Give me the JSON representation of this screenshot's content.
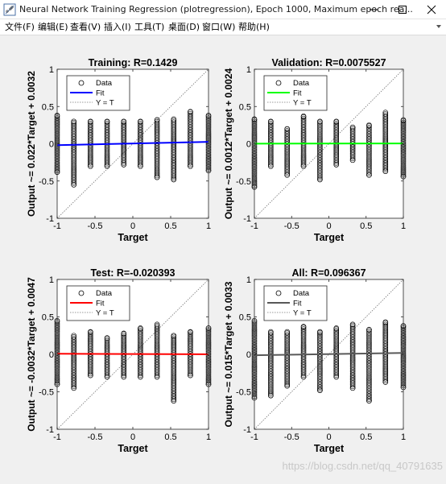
{
  "window": {
    "title": "Neural Network Training Regression (plotregression), Epoch 1000, Maximum epoch rea..."
  },
  "menu": {
    "items": [
      "文件(F)",
      "编辑(E)",
      "查看(V)",
      "插入(I)",
      "工具(T)",
      "桌面(D)",
      "窗口(W)",
      "帮助(H)"
    ]
  },
  "watermark": "https://blog.csdn.net/qq_40791635",
  "colors": {
    "training_fit": "#0000ff",
    "validation_fit": "#00ff00",
    "test_fit": "#ff0000",
    "all_fit": "#595959"
  },
  "chart_data": [
    {
      "type": "scatter",
      "title": "Training: R=0.1429",
      "xlabel": "Target",
      "ylabel": "Output ~= 0.022*Target + 0.0032",
      "xlim": [
        -1,
        1
      ],
      "ylim": [
        -1,
        1
      ],
      "xticks": [
        -1,
        -0.5,
        0,
        0.5,
        1
      ],
      "yticks": [
        -1,
        -0.5,
        0,
        0.5,
        1
      ],
      "fit": {
        "slope": 0.022,
        "intercept": 0.0032,
        "color": "#0000ff"
      },
      "legend": [
        "Data",
        "Fit",
        "Y = T"
      ],
      "legend_position": "top-left",
      "columns": [
        {
          "x": -1,
          "ymin": -0.38,
          "ymax": 0.38
        },
        {
          "x": -0.78,
          "ymin": -0.55,
          "ymax": 0.3
        },
        {
          "x": -0.56,
          "ymin": -0.3,
          "ymax": 0.3
        },
        {
          "x": -0.34,
          "ymin": -0.3,
          "ymax": 0.3
        },
        {
          "x": -0.12,
          "ymin": -0.28,
          "ymax": 0.3
        },
        {
          "x": 0.1,
          "ymin": -0.3,
          "ymax": 0.3
        },
        {
          "x": 0.32,
          "ymin": -0.45,
          "ymax": 0.32
        },
        {
          "x": 0.54,
          "ymin": -0.48,
          "ymax": 0.33
        },
        {
          "x": 0.76,
          "ymin": -0.3,
          "ymax": 0.43
        },
        {
          "x": 1,
          "ymin": -0.36,
          "ymax": 0.38
        }
      ]
    },
    {
      "type": "scatter",
      "title": "Validation: R=0.0075527",
      "xlabel": "Target",
      "ylabel": "Output ~= 0.0012*Target + 0.0024",
      "xlim": [
        -1,
        1
      ],
      "ylim": [
        -1,
        1
      ],
      "xticks": [
        -1,
        -0.5,
        0,
        0.5,
        1
      ],
      "yticks": [
        -1,
        -0.5,
        0,
        0.5,
        1
      ],
      "fit": {
        "slope": 0.0012,
        "intercept": 0.0024,
        "color": "#00ff00"
      },
      "legend": [
        "Data",
        "Fit",
        "Y = T"
      ],
      "legend_position": "top-left",
      "columns": [
        {
          "x": -1,
          "ymin": -0.58,
          "ymax": 0.33
        },
        {
          "x": -0.78,
          "ymin": -0.3,
          "ymax": 0.3
        },
        {
          "x": -0.56,
          "ymin": -0.42,
          "ymax": 0.2
        },
        {
          "x": -0.34,
          "ymin": -0.3,
          "ymax": 0.37
        },
        {
          "x": -0.12,
          "ymin": -0.48,
          "ymax": 0.3
        },
        {
          "x": 0.1,
          "ymin": -0.28,
          "ymax": 0.3
        },
        {
          "x": 0.32,
          "ymin": -0.22,
          "ymax": 0.22
        },
        {
          "x": 0.54,
          "ymin": -0.42,
          "ymax": 0.25
        },
        {
          "x": 0.76,
          "ymin": -0.37,
          "ymax": 0.42
        },
        {
          "x": 1,
          "ymin": -0.44,
          "ymax": 0.32
        }
      ]
    },
    {
      "type": "scatter",
      "title": "Test: R=-0.020393",
      "xlabel": "Target",
      "ylabel": "Output ~= -0.0032*Target + 0.0047",
      "xlim": [
        -1,
        1
      ],
      "ylim": [
        -1,
        1
      ],
      "xticks": [
        -1,
        -0.5,
        0,
        0.5,
        1
      ],
      "yticks": [
        -1,
        -0.5,
        0,
        0.5,
        1
      ],
      "fit": {
        "slope": -0.0032,
        "intercept": 0.0047,
        "color": "#ff0000"
      },
      "legend": [
        "Data",
        "Fit",
        "Y = T"
      ],
      "legend_position": "top-left",
      "columns": [
        {
          "x": -1,
          "ymin": -0.4,
          "ymax": 0.45
        },
        {
          "x": -0.78,
          "ymin": -0.45,
          "ymax": 0.25
        },
        {
          "x": -0.56,
          "ymin": -0.28,
          "ymax": 0.3
        },
        {
          "x": -0.34,
          "ymin": -0.3,
          "ymax": 0.22
        },
        {
          "x": -0.12,
          "ymin": -0.3,
          "ymax": 0.28
        },
        {
          "x": 0.1,
          "ymin": -0.3,
          "ymax": 0.35
        },
        {
          "x": 0.32,
          "ymin": -0.3,
          "ymax": 0.4
        },
        {
          "x": 0.54,
          "ymin": -0.62,
          "ymax": 0.25
        },
        {
          "x": 0.76,
          "ymin": -0.28,
          "ymax": 0.3
        },
        {
          "x": 1,
          "ymin": -0.4,
          "ymax": 0.35
        }
      ]
    },
    {
      "type": "scatter",
      "title": "All: R=0.096367",
      "xlabel": "Target",
      "ylabel": "Output ~= 0.015*Target + 0.0033",
      "xlim": [
        -1,
        1
      ],
      "ylim": [
        -1,
        1
      ],
      "xticks": [
        -1,
        -0.5,
        0,
        0.5,
        1
      ],
      "yticks": [
        -1,
        -0.5,
        0,
        0.5,
        1
      ],
      "fit": {
        "slope": 0.015,
        "intercept": 0.0033,
        "color": "#595959"
      },
      "legend": [
        "Data",
        "Fit",
        "Y = T"
      ],
      "legend_position": "top-left",
      "columns": [
        {
          "x": -1,
          "ymin": -0.58,
          "ymax": 0.45
        },
        {
          "x": -0.78,
          "ymin": -0.55,
          "ymax": 0.3
        },
        {
          "x": -0.56,
          "ymin": -0.42,
          "ymax": 0.3
        },
        {
          "x": -0.34,
          "ymin": -0.3,
          "ymax": 0.37
        },
        {
          "x": -0.12,
          "ymin": -0.48,
          "ymax": 0.3
        },
        {
          "x": 0.1,
          "ymin": -0.3,
          "ymax": 0.35
        },
        {
          "x": 0.32,
          "ymin": -0.45,
          "ymax": 0.4
        },
        {
          "x": 0.54,
          "ymin": -0.62,
          "ymax": 0.33
        },
        {
          "x": 0.76,
          "ymin": -0.37,
          "ymax": 0.43
        },
        {
          "x": 1,
          "ymin": -0.44,
          "ymax": 0.38
        }
      ]
    }
  ]
}
